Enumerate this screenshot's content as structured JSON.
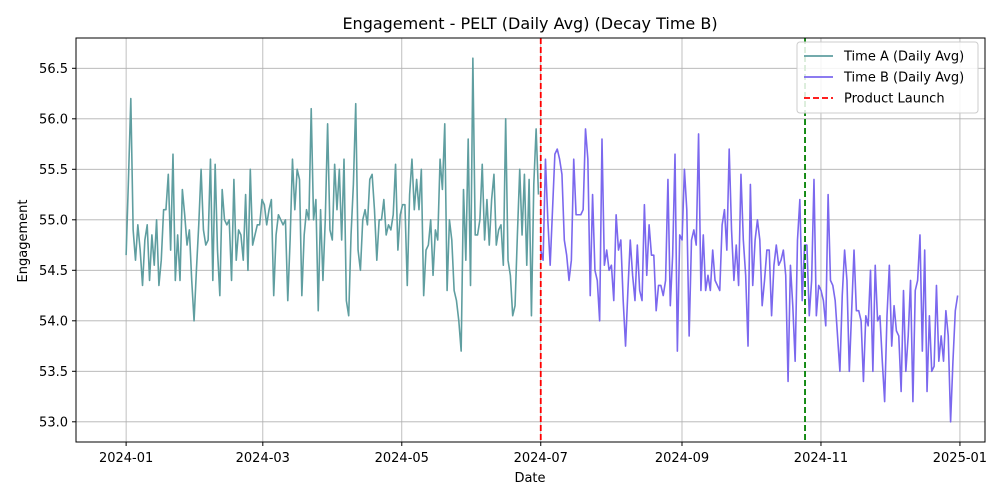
{
  "chart_data": {
    "type": "line",
    "title": "Engagement - PELT (Daily Avg) (Decay Time B)",
    "xlabel": "Date",
    "ylabel": "Engagement",
    "x_range": [
      "2023-12-10",
      "2025-01-12"
    ],
    "ylim": [
      52.8,
      56.8
    ],
    "grid": true,
    "legend_position": "top-right",
    "x_ticks": [
      "2024-01",
      "2024-03",
      "2024-05",
      "2024-07",
      "2024-09",
      "2024-11",
      "2025-01"
    ],
    "y_ticks": [
      "53.0",
      "53.5",
      "54.0",
      "54.5",
      "55.0",
      "55.5",
      "56.0",
      "56.5"
    ],
    "series": [
      {
        "name": "Time A (Daily Avg)",
        "color": "#5f9ea0",
        "start_date": "2024-01-01",
        "values": [
          54.65,
          55.4,
          56.2,
          54.9,
          54.6,
          54.95,
          54.7,
          54.35,
          54.8,
          54.95,
          54.4,
          54.85,
          54.55,
          55.0,
          54.35,
          54.6,
          55.1,
          55.1,
          55.45,
          54.7,
          55.65,
          54.4,
          54.85,
          54.4,
          55.3,
          55.05,
          54.75,
          54.9,
          54.4,
          54.0,
          54.5,
          54.95,
          55.5,
          54.9,
          54.75,
          54.8,
          55.6,
          54.4,
          55.55,
          54.7,
          54.25,
          55.3,
          55.0,
          54.95,
          55.0,
          54.4,
          55.4,
          54.6,
          54.9,
          54.85,
          54.6,
          55.25,
          54.5,
          55.5,
          54.75,
          54.85,
          54.95,
          54.95,
          55.2,
          55.15,
          54.95,
          55.1,
          55.2,
          54.25,
          54.85,
          55.05,
          55.0,
          54.95,
          55.0,
          54.2,
          54.8,
          55.6,
          55.1,
          55.5,
          55.4,
          54.25,
          54.85,
          55.1,
          55.0,
          56.1,
          55.0,
          55.2,
          54.1,
          55.1,
          54.4,
          55.0,
          55.95,
          54.9,
          54.8,
          55.55,
          55.1,
          55.5,
          54.8,
          55.6,
          54.2,
          54.05,
          54.85,
          55.35,
          56.15,
          54.7,
          54.5,
          55.0,
          55.1,
          54.95,
          55.4,
          55.45,
          55.1,
          54.6,
          55.0,
          55.0,
          55.2,
          54.85,
          54.95,
          54.9,
          55.05,
          55.55,
          54.7,
          55.05,
          55.15,
          55.15,
          54.35,
          55.25,
          55.6,
          55.1,
          55.4,
          55.1,
          55.5,
          54.25,
          54.7,
          54.75,
          55.0,
          54.45,
          54.9,
          54.8,
          55.6,
          55.3,
          55.95,
          54.3,
          55.0,
          54.8,
          54.3,
          54.2,
          54.0,
          53.7,
          55.3,
          54.6,
          55.8,
          54.35,
          56.6,
          54.85,
          54.85,
          55.0,
          55.55,
          54.8,
          55.2,
          54.75,
          55.2,
          55.45,
          54.75,
          54.9,
          54.95,
          54.55,
          56.0,
          54.6,
          54.45,
          54.05,
          54.15,
          54.85,
          55.5,
          54.85,
          55.45,
          54.55,
          55.4,
          54.05,
          55.35,
          55.9,
          55.25
        ],
        "end_date": "2024-06-30"
      },
      {
        "name": "Time B (Daily Avg)",
        "color": "#7b68ee",
        "start_date": "2024-07-01",
        "values": [
          54.7,
          54.6,
          55.6,
          55.0,
          54.55,
          55.1,
          55.65,
          55.7,
          55.6,
          55.45,
          54.8,
          54.65,
          54.4,
          54.6,
          55.6,
          55.05,
          55.05,
          55.05,
          55.1,
          55.9,
          55.6,
          54.25,
          55.25,
          54.5,
          54.4,
          54.0,
          55.8,
          54.55,
          54.7,
          54.5,
          54.55,
          54.2,
          55.05,
          54.7,
          54.8,
          54.2,
          53.75,
          54.3,
          54.8,
          54.45,
          54.2,
          54.75,
          54.3,
          54.2,
          55.15,
          54.45,
          54.95,
          54.65,
          54.65,
          54.1,
          54.35,
          54.35,
          54.25,
          54.4,
          55.4,
          54.15,
          54.65,
          55.65,
          53.7,
          54.85,
          54.8,
          55.5,
          55.1,
          53.85,
          54.8,
          54.9,
          54.75,
          55.85,
          54.3,
          54.85,
          54.3,
          54.45,
          54.3,
          54.7,
          54.4,
          54.35,
          54.3,
          54.95,
          55.1,
          54.7,
          55.7,
          54.9,
          54.4,
          54.75,
          54.35,
          55.45,
          54.8,
          54.45,
          53.75,
          55.35,
          54.35,
          54.8,
          55.0,
          54.8,
          54.15,
          54.4,
          54.7,
          54.7,
          54.05,
          54.55,
          54.75,
          54.55,
          54.6,
          54.7,
          54.45,
          53.4,
          54.55,
          54.15,
          53.6,
          54.8,
          55.2,
          54.2,
          54.75,
          54.75,
          54.05,
          54.4,
          55.4,
          54.05,
          54.35,
          54.3,
          54.2,
          53.95,
          55.25,
          54.4,
          54.35,
          54.2,
          53.85,
          53.5,
          54.25,
          54.7,
          54.4,
          53.5,
          54.1,
          54.7,
          54.1,
          54.1,
          54.0,
          53.4,
          54.05,
          53.95,
          54.5,
          53.5,
          54.55,
          54.0,
          54.05,
          53.6,
          53.2,
          54.05,
          54.55,
          53.75,
          54.15,
          53.9,
          53.85,
          53.3,
          54.3,
          53.5,
          53.85,
          54.4,
          53.2,
          54.3,
          54.4,
          54.85,
          53.7,
          54.7,
          53.3,
          54.05,
          53.5,
          53.55,
          54.35,
          53.6,
          53.85,
          53.6,
          54.1,
          53.85,
          53.0,
          53.6,
          54.1,
          54.25
        ],
        "end_date": "2024-12-31"
      }
    ],
    "vlines": [
      {
        "name": "Product Launch",
        "date": "2024-07-01",
        "color": "#ff0000",
        "style": "dashed",
        "in_legend": true
      },
      {
        "date": "2024-10-25",
        "color": "#008000",
        "style": "dashed",
        "in_legend": false
      }
    ]
  }
}
